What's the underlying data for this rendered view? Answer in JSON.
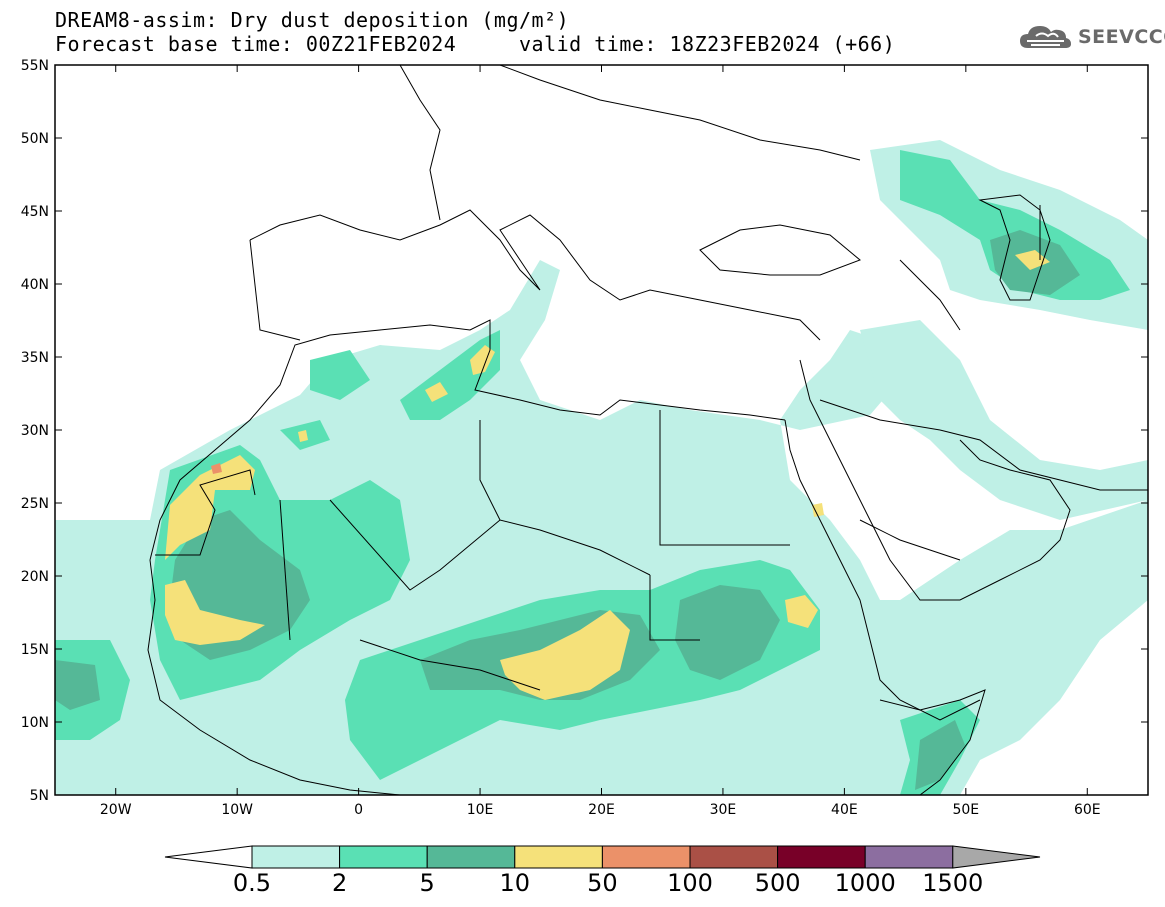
{
  "header": {
    "title": "DREAM8-assim: Dry dust deposition (mg/m²)",
    "subtitle": "Forecast base time: 00Z21FEB2024     valid time: 18Z23FEB2024 (+66)"
  },
  "logo": {
    "text": "SEEVCCC",
    "icon": "cloud-logo-icon"
  },
  "map": {
    "lon_range": [
      -25,
      65
    ],
    "lat_range": [
      5,
      55
    ],
    "lat_ticks": [
      "55N",
      "50N",
      "45N",
      "40N",
      "35N",
      "30N",
      "25N",
      "20N",
      "15N",
      "10N",
      "5N"
    ],
    "lon_ticks": [
      "20W",
      "10W",
      "0",
      "10E",
      "20E",
      "30E",
      "40E",
      "50E",
      "60E"
    ]
  },
  "colorbar": {
    "levels": [
      "0.5",
      "2",
      "5",
      "10",
      "50",
      "100",
      "500",
      "1000",
      "1500"
    ],
    "colors": [
      "#bff0e6",
      "#5ae0b4",
      "#55b897",
      "#f5e17a",
      "#eb9169",
      "#aa5046",
      "#780028",
      "#8c6ea0"
    ],
    "under_color": "#ffffff",
    "over_color": "#a8a8a8"
  }
}
